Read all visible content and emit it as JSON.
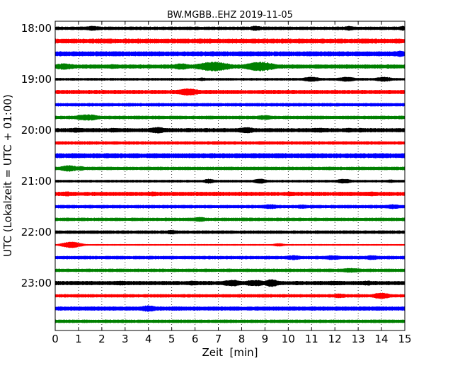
{
  "chart_data": {
    "type": "line",
    "title": "BW.MGBB..EHZ 2019-11-05",
    "xlabel": "Zeit  [min]",
    "ylabel": "UTC (Lokalzeit = UTC + 01:00)",
    "xlim": [
      0,
      15
    ],
    "x_ticks": [
      "0",
      "1",
      "2",
      "3",
      "4",
      "5",
      "6",
      "7",
      "8",
      "9",
      "10",
      "11",
      "12",
      "13",
      "14",
      "15"
    ],
    "y_ticks": [
      {
        "label": "18:00",
        "trace": 0
      },
      {
        "label": "19:00",
        "trace": 4
      },
      {
        "label": "20:00",
        "trace": 8
      },
      {
        "label": "21:00",
        "trace": 12
      },
      {
        "label": "22:00",
        "trace": 16
      },
      {
        "label": "23:00",
        "trace": 20
      }
    ],
    "grid": "vertical-dotted",
    "trace_colors": [
      "#000000",
      "#ff0000",
      "#0000ff",
      "#008000"
    ],
    "traces": [
      {
        "start": "18:00",
        "color": "#000000",
        "base": 2,
        "bursts": [
          [
            1.6,
            3,
            0.5
          ],
          [
            3.3,
            2,
            0.3
          ],
          [
            8.6,
            3,
            0.4
          ],
          [
            12.6,
            3,
            0.3
          ],
          [
            14.9,
            3,
            0.2
          ]
        ]
      },
      {
        "start": "18:15",
        "color": "#ff0000",
        "base": 3,
        "bursts": [
          [
            4.6,
            2.5,
            0.4
          ],
          [
            9.8,
            2,
            0.3
          ],
          [
            13.3,
            3,
            0.5
          ]
        ]
      },
      {
        "start": "18:30",
        "color": "#0000ff",
        "base": 3,
        "bursts": [
          [
            0.7,
            2,
            0.4
          ],
          [
            3.9,
            2.5,
            0.4
          ],
          [
            10.7,
            2.5,
            0.5
          ],
          [
            12.9,
            3,
            0.6
          ],
          [
            14.8,
            4,
            0.3
          ]
        ]
      },
      {
        "start": "18:45",
        "color": "#008000",
        "base": 2.5,
        "bursts": [
          [
            0.4,
            4,
            0.6
          ],
          [
            2.5,
            3,
            0.4
          ],
          [
            5.4,
            4,
            0.5
          ],
          [
            6.8,
            6,
            0.9
          ],
          [
            8.8,
            6,
            0.8
          ]
        ]
      },
      {
        "start": "19:00",
        "color": "#000000",
        "base": 1.5,
        "bursts": [
          [
            6.3,
            2,
            0.3
          ],
          [
            11.0,
            3,
            0.5
          ],
          [
            12.5,
            3,
            0.5
          ],
          [
            14.1,
            3,
            0.5
          ]
        ]
      },
      {
        "start": "19:15",
        "color": "#ff0000",
        "base": 2.5,
        "bursts": [
          [
            1.9,
            2,
            0.5
          ],
          [
            5.7,
            4.5,
            0.7
          ],
          [
            12.7,
            2,
            0.3
          ]
        ]
      },
      {
        "start": "19:30",
        "color": "#0000ff",
        "base": 2,
        "bursts": [
          [
            4.3,
            2,
            0.4
          ],
          [
            8.4,
            2,
            0.4
          ],
          [
            11.6,
            2,
            0.3
          ],
          [
            14.2,
            2,
            0.3
          ]
        ]
      },
      {
        "start": "19:45",
        "color": "#008000",
        "base": 2,
        "bursts": [
          [
            1.4,
            4,
            0.7
          ],
          [
            3.6,
            2,
            0.5
          ],
          [
            9.0,
            3,
            0.5
          ]
        ]
      },
      {
        "start": "20:00",
        "color": "#000000",
        "base": 2.5,
        "bursts": [
          [
            0.9,
            3,
            0.6
          ],
          [
            2.5,
            3,
            0.3
          ],
          [
            4.4,
            4,
            0.5
          ],
          [
            8.2,
            4,
            0.5
          ],
          [
            11.3,
            3,
            0.6
          ],
          [
            12.6,
            3,
            0.3
          ],
          [
            13.1,
            3,
            0.2
          ]
        ]
      },
      {
        "start": "20:15",
        "color": "#ff0000",
        "base": 2,
        "bursts": [
          [
            6.9,
            2,
            0.4
          ],
          [
            8.8,
            2,
            0.4
          ],
          [
            13.9,
            2,
            0.4
          ]
        ]
      },
      {
        "start": "20:30",
        "color": "#0000ff",
        "base": 3,
        "bursts": [
          [
            2.2,
            3,
            0.3
          ],
          [
            4.2,
            3,
            0.4
          ],
          [
            8.5,
            3,
            0.4
          ],
          [
            10.9,
            3,
            0.3
          ],
          [
            14.1,
            3,
            0.5
          ]
        ]
      },
      {
        "start": "20:45",
        "color": "#008000",
        "base": 2,
        "bursts": [
          [
            0.6,
            4,
            0.5
          ],
          [
            1.1,
            3,
            0.2
          ],
          [
            4.0,
            2,
            0.3
          ],
          [
            9.0,
            2,
            0.4
          ]
        ]
      },
      {
        "start": "21:00",
        "color": "#000000",
        "base": 1.5,
        "bursts": [
          [
            6.6,
            3,
            0.3
          ],
          [
            8.8,
            3,
            0.4
          ],
          [
            12.4,
            3,
            0.4
          ],
          [
            14.4,
            2,
            0.3
          ]
        ]
      },
      {
        "start": "21:15",
        "color": "#ff0000",
        "base": 2.5,
        "bursts": [
          [
            0.5,
            3,
            0.5
          ],
          [
            2.4,
            2,
            0.4
          ],
          [
            4.2,
            3,
            0.3
          ],
          [
            10.1,
            3,
            0.3
          ],
          [
            13.6,
            3,
            0.4
          ]
        ]
      },
      {
        "start": "21:30",
        "color": "#0000ff",
        "base": 2,
        "bursts": [
          [
            9.2,
            3,
            0.5
          ],
          [
            10.6,
            2.5,
            0.4
          ],
          [
            14.5,
            3,
            0.4
          ]
        ]
      },
      {
        "start": "21:45",
        "color": "#008000",
        "base": 2,
        "bursts": [
          [
            3.4,
            2,
            0.4
          ],
          [
            6.2,
            3,
            0.4
          ]
        ]
      },
      {
        "start": "22:00",
        "color": "#000000",
        "base": 2,
        "bursts": [
          [
            5.0,
            3,
            0.3
          ],
          [
            9.0,
            2,
            0.3
          ],
          [
            10.2,
            2,
            0.2
          ],
          [
            11.6,
            2,
            0.3
          ]
        ]
      },
      {
        "start": "22:15",
        "color": "#ff0000",
        "base": 0.8,
        "bursts": [
          [
            0.7,
            4,
            0.5
          ],
          [
            9.6,
            2,
            0.3
          ]
        ]
      },
      {
        "start": "22:30",
        "color": "#0000ff",
        "base": 2,
        "bursts": [
          [
            10.2,
            3,
            0.5
          ],
          [
            11.9,
            3,
            0.5
          ],
          [
            13.6,
            3,
            0.4
          ]
        ]
      },
      {
        "start": "22:45",
        "color": "#008000",
        "base": 2,
        "bursts": [
          [
            7.4,
            2,
            0.4
          ],
          [
            10.9,
            2,
            0.4
          ],
          [
            12.7,
            3,
            0.6
          ],
          [
            14.3,
            2,
            0.4
          ]
        ]
      },
      {
        "start": "23:00",
        "color": "#000000",
        "base": 2.5,
        "bursts": [
          [
            2.8,
            3,
            0.5
          ],
          [
            5.9,
            3,
            0.5
          ],
          [
            7.6,
            4,
            0.6
          ],
          [
            8.6,
            4,
            0.7
          ],
          [
            9.3,
            5,
            0.4
          ],
          [
            12.0,
            3,
            0.6
          ],
          [
            13.4,
            3,
            0.4
          ]
        ]
      },
      {
        "start": "23:15",
        "color": "#ff0000",
        "base": 2,
        "bursts": [
          [
            4.7,
            2,
            0.4
          ],
          [
            12.2,
            3,
            0.4
          ],
          [
            14.0,
            4,
            0.5
          ]
        ]
      },
      {
        "start": "23:30",
        "color": "#0000ff",
        "base": 2.5,
        "bursts": [
          [
            1.3,
            2,
            0.3
          ],
          [
            4.0,
            4,
            0.5
          ],
          [
            6.3,
            2,
            0.4
          ],
          [
            9.9,
            2,
            0.3
          ],
          [
            13.7,
            2,
            0.3
          ]
        ]
      },
      {
        "start": "23:45",
        "color": "#008000",
        "base": 2,
        "bursts": [
          [
            2.2,
            2,
            0.4
          ],
          [
            6.0,
            2,
            0.4
          ],
          [
            10.9,
            2,
            0.4
          ],
          [
            13.9,
            2,
            0.4
          ]
        ]
      }
    ]
  }
}
